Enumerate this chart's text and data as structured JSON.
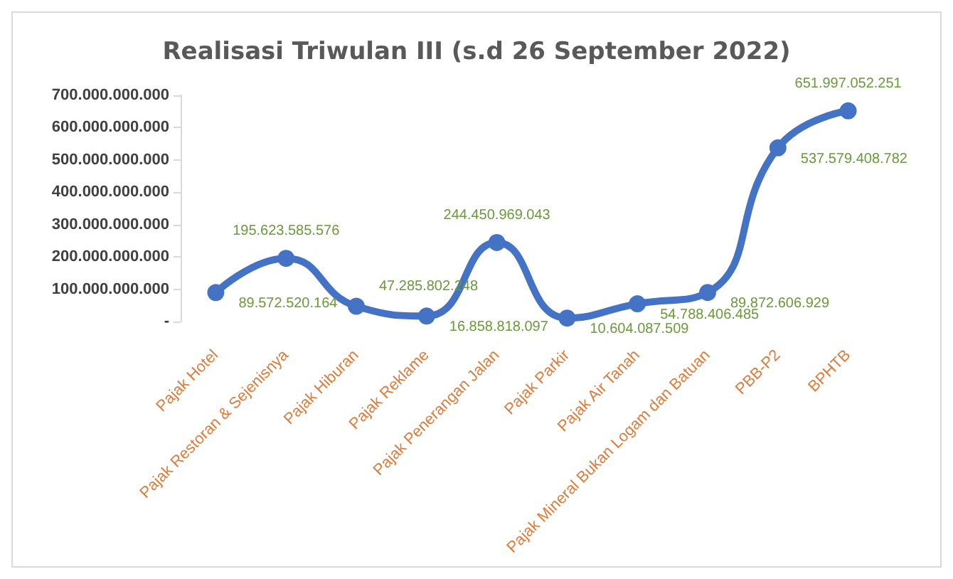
{
  "chart_data": {
    "type": "line",
    "title": "Realisasi Triwulan III (s.d 26 September 2022)",
    "categories": [
      "Pajak Hotel",
      "Pajak Restoran & Sejenisnya",
      "Pajak Hiburan",
      "Pajak Reklame",
      "Pajak Penerangan Jalan",
      "Pajak Parkir",
      "Pajak Air Tanah",
      "Pajak Mineral Bukan Logam dan Batuan",
      "PBB-P2",
      "BPHTB"
    ],
    "series": [
      {
        "color": "#4472c4",
        "values": [
          89572520164,
          195623585576,
          47285802248,
          16858818097,
          244450969043,
          10604087509,
          54788406485,
          89872606929,
          537579408782,
          651997052251
        ],
        "value_labels": [
          "89.572.520.164",
          "195.623.585.576",
          "47.285.802.248",
          "16.858.818.097",
          "244.450.969.043",
          "10.604.087.509",
          "54.788.406.485",
          "89.872.606.929",
          "537.579.408.782",
          "651.997.052.251"
        ]
      }
    ],
    "ylim": [
      0,
      700000000000
    ],
    "yticks": [
      {
        "value": 0,
        "label": "-"
      },
      {
        "value": 100000000000,
        "label": "100.000.000.000"
      },
      {
        "value": 200000000000,
        "label": "200.000.000.000"
      },
      {
        "value": 300000000000,
        "label": "300.000.000.000"
      },
      {
        "value": 400000000000,
        "label": "400.000.000.000"
      },
      {
        "value": 500000000000,
        "label": "500.000.000.000"
      },
      {
        "value": 600000000000,
        "label": "600.000.000.000"
      },
      {
        "value": 700000000000,
        "label": "700.000.000.000"
      }
    ],
    "grid": false,
    "marker": "circle",
    "line_style": "solid"
  }
}
